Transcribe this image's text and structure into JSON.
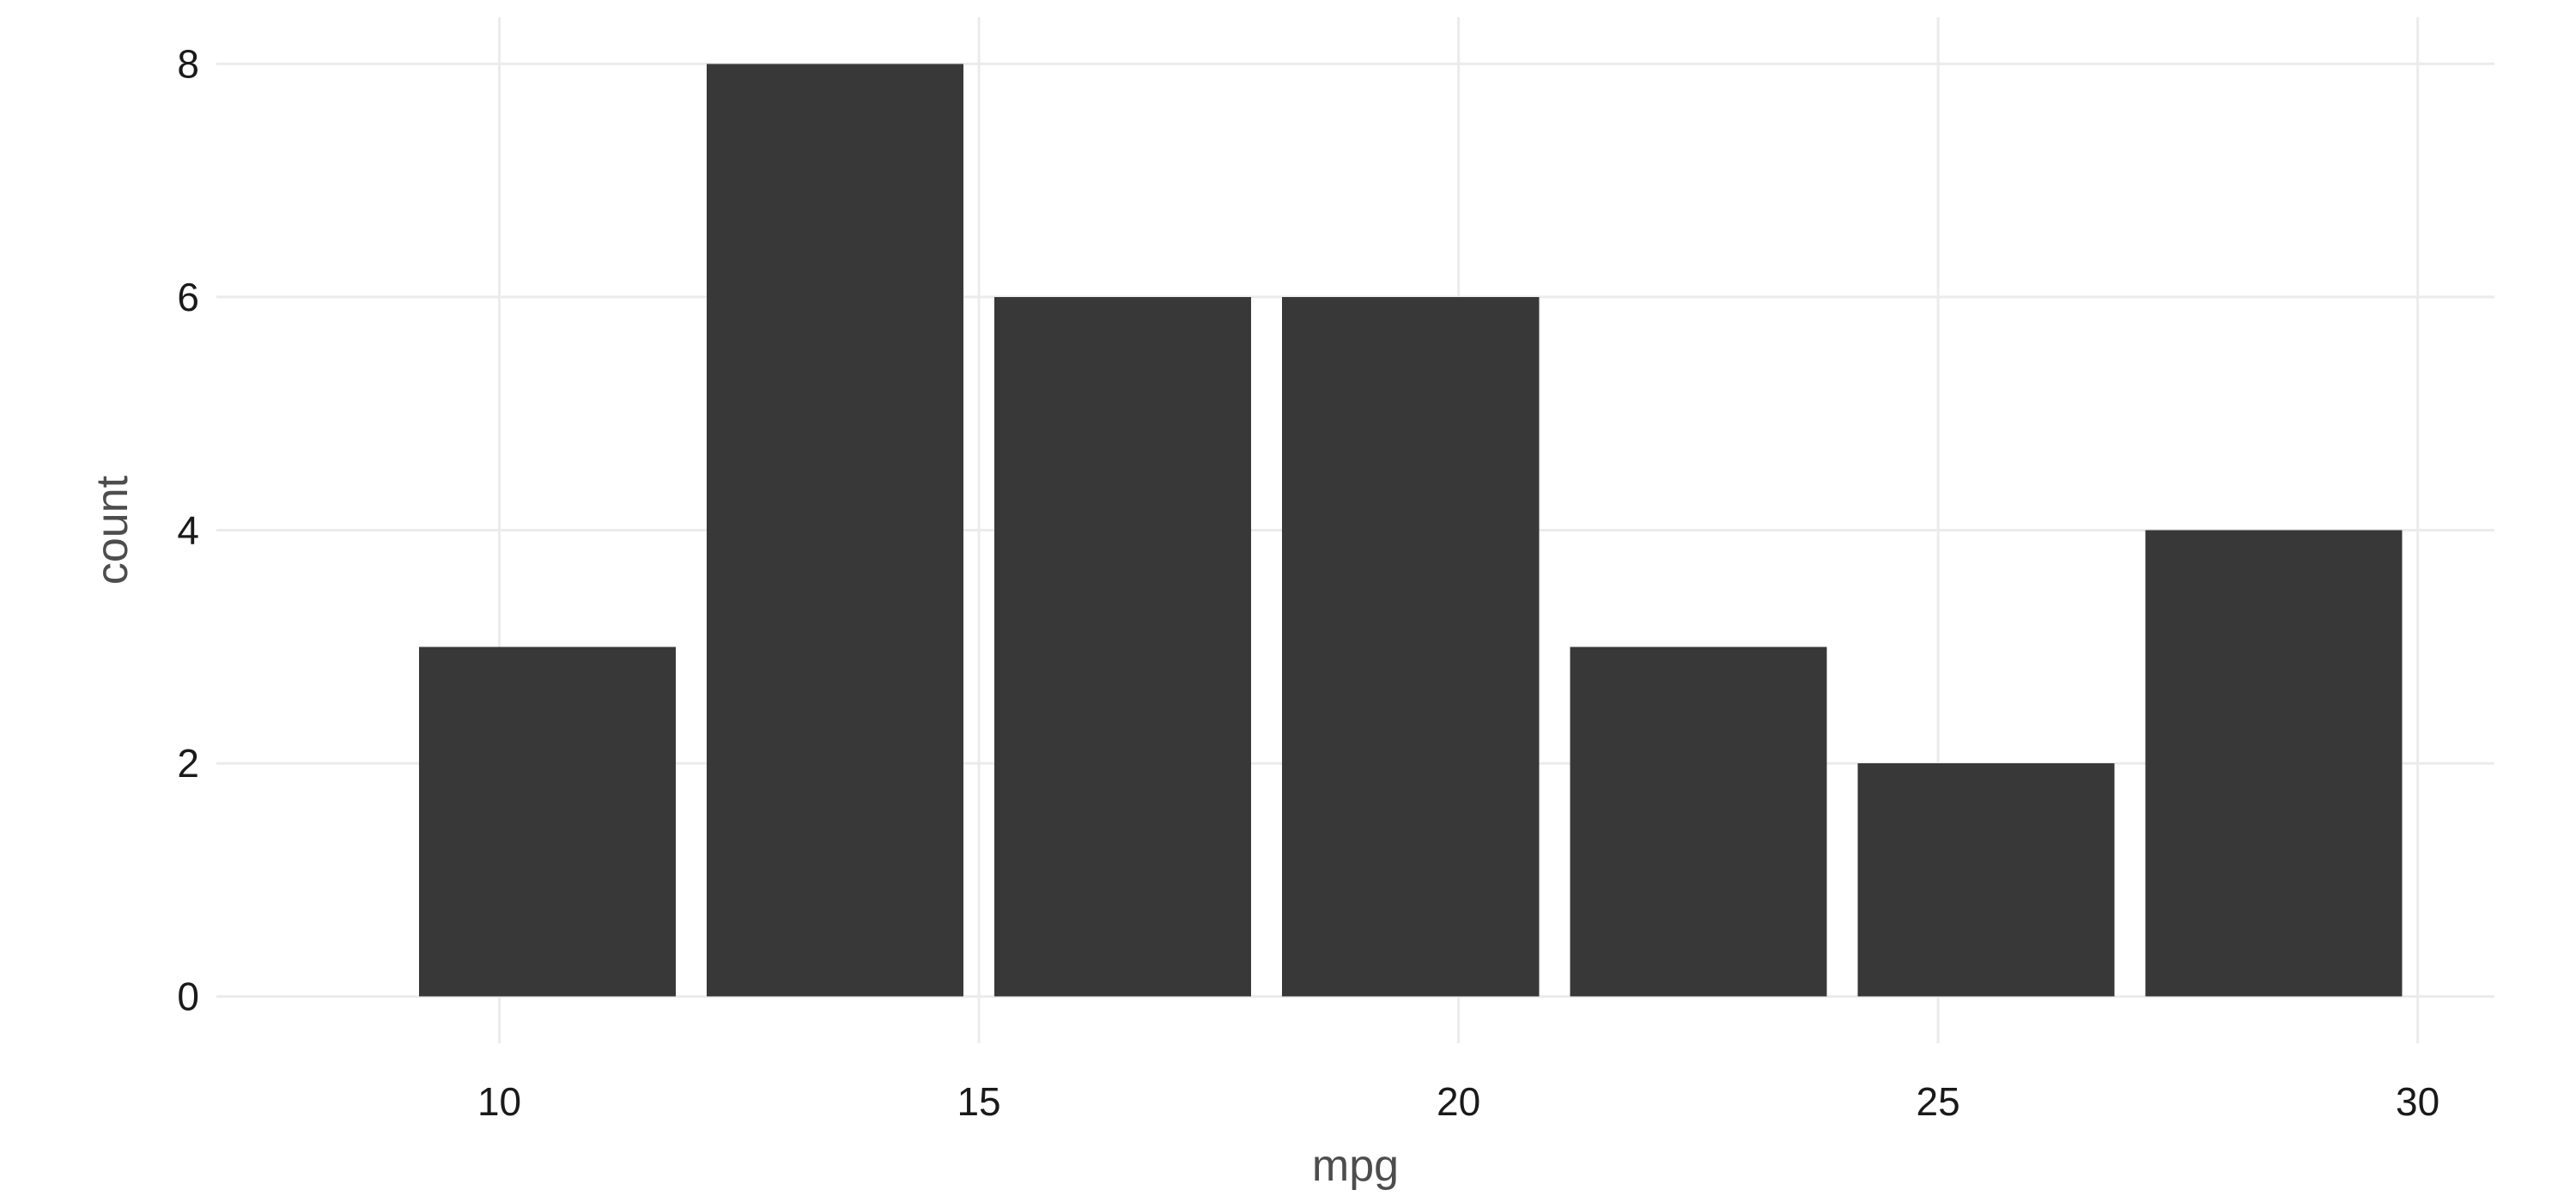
{
  "chart_data": {
    "type": "bar",
    "title": "",
    "xlabel": "mpg",
    "ylabel": "count",
    "bins": [
      {
        "x_start": 9.0,
        "x_end": 12.0,
        "count": 3
      },
      {
        "x_start": 12.0,
        "x_end": 15.0,
        "count": 8
      },
      {
        "x_start": 15.0,
        "x_end": 18.0,
        "count": 6
      },
      {
        "x_start": 18.0,
        "x_end": 21.0,
        "count": 6
      },
      {
        "x_start": 21.0,
        "x_end": 24.0,
        "count": 3
      },
      {
        "x_start": 24.0,
        "x_end": 27.0,
        "count": 2
      },
      {
        "x_start": 27.0,
        "x_end": 30.0,
        "count": 4
      }
    ],
    "x_ticks": [
      10,
      15,
      20,
      25,
      30
    ],
    "y_ticks": [
      0,
      2,
      4,
      6,
      8
    ],
    "xlim": [
      7.05,
      30.8
    ],
    "ylim": [
      -0.4,
      8.4
    ],
    "grid": true,
    "legend": "none",
    "bar_color": "#383838",
    "grid_color": "#ebebeb"
  }
}
